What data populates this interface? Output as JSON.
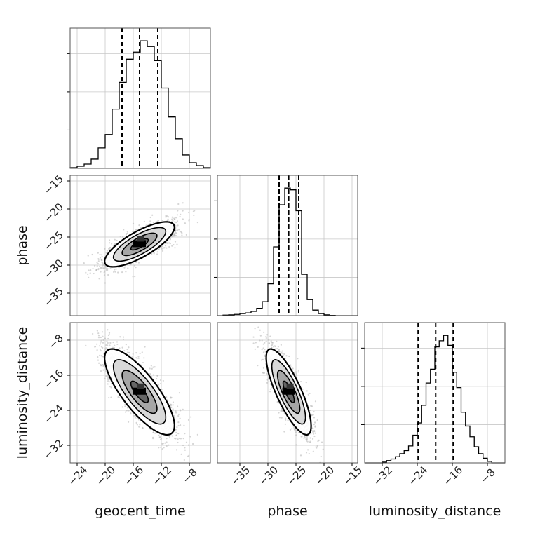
{
  "chart_data": {
    "type": "corner",
    "parameters": [
      "geocent_time",
      "phase",
      "luminosity_distance"
    ],
    "xlabels": {
      "geocent_time": "geocent_time",
      "phase": "phase",
      "luminosity_distance": "luminosity_distance"
    },
    "ylabels": {
      "phase": "phase",
      "luminosity_distance": "luminosity_distance"
    },
    "ranges": {
      "geocent_time": [
        -25,
        -5
      ],
      "phase": [
        -39,
        -14
      ],
      "luminosity_distance": [
        -36,
        -4
      ]
    },
    "ticks": {
      "geocent_time": [
        -24,
        -20,
        -16,
        -12,
        -8
      ],
      "phase": [
        -35,
        -30,
        -25,
        -20,
        -15
      ],
      "luminosity_distance": [
        -32,
        -24,
        -16,
        -8
      ]
    },
    "tick_labels": {
      "geocent_time": [
        "−24",
        "−20",
        "−16",
        "−12",
        "−8"
      ],
      "phase": [
        "−35",
        "−30",
        "−25",
        "−20",
        "−15"
      ],
      "luminosity_distance": [
        "−32",
        "−24",
        "−16",
        "−8"
      ]
    },
    "quantiles": {
      "geocent_time": [
        -17.6,
        -15.1,
        -12.5
      ],
      "phase": [
        -28.0,
        -26.3,
        -24.5
      ],
      "luminosity_distance": [
        -23.8,
        -19.8,
        -15.8
      ]
    },
    "histograms": {
      "geocent_time": {
        "edges": [
          -25,
          -24,
          -23,
          -22,
          -21,
          -20,
          -19,
          -18,
          -17,
          -16,
          -15,
          -14,
          -13,
          -12,
          -11,
          -10,
          -9,
          -8,
          -7,
          -6,
          -5
        ],
        "counts": [
          1,
          3,
          6,
          13,
          29,
          48,
          84,
          122,
          155,
          165,
          181,
          173,
          153,
          114,
          73,
          42,
          19,
          8,
          4,
          1
        ]
      },
      "phase": {
        "edges": [
          -39,
          -38,
          -37,
          -36,
          -35,
          -34,
          -33,
          -32,
          -31,
          -30,
          -29,
          -28,
          -27,
          -26,
          -25,
          -24,
          -23,
          -22,
          -21,
          -20,
          -19,
          -18,
          -17,
          -16,
          -15,
          -14
        ],
        "counts": [
          0,
          2,
          3,
          5,
          8,
          11,
          17,
          29,
          56,
          128,
          276,
          445,
          512,
          505,
          421,
          166,
          64,
          22,
          8,
          3,
          1,
          0,
          0,
          0,
          0
        ]
      },
      "luminosity_distance": {
        "edges": [
          -36,
          -35,
          -34,
          -33,
          -32,
          -31,
          -30,
          -29,
          -28,
          -27,
          -26,
          -25,
          -24,
          -23,
          -22,
          -21,
          -20,
          -19,
          -18,
          -17,
          -16,
          -15,
          -14,
          -13,
          -12,
          -11,
          -10,
          -9,
          -8,
          -7,
          -6,
          -5,
          -4
        ],
        "counts": [
          0,
          0,
          0,
          0,
          1,
          3,
          5,
          8,
          12,
          16,
          22,
          36,
          52,
          75,
          104,
          122,
          151,
          159,
          166,
          153,
          118,
          98,
          66,
          48,
          34,
          21,
          12,
          6,
          2,
          0,
          0,
          0
        ]
      }
    },
    "pairs": [
      {
        "x": "geocent_time",
        "y": "phase",
        "mean": [
          -15.1,
          -26.3
        ],
        "cov": [
          [
            6.2,
            3.8
          ],
          [
            3.8,
            4.0
          ]
        ]
      },
      {
        "x": "geocent_time",
        "y": "luminosity_distance",
        "mean": [
          -15.1,
          -19.8
        ],
        "cov": [
          [
            6.2,
            -9.6
          ],
          [
            -9.6,
            24.0
          ]
        ]
      },
      {
        "x": "phase",
        "y": "luminosity_distance",
        "mean": [
          -26.3,
          -19.8
        ],
        "cov": [
          [
            4.0,
            -7.8
          ],
          [
            -7.8,
            24.0
          ]
        ]
      }
    ],
    "contour_levels_sigma": [
      0.5,
      1.0,
      1.5,
      2.0
    ],
    "colors": {
      "histogram": "#000000",
      "quantile_line": "#000000",
      "contour": "#000000",
      "scatter": "#b3b3b3",
      "grid": "#c8c8c8",
      "density_dark": "#000000",
      "density_light": "#ffffff"
    },
    "grid": true
  }
}
